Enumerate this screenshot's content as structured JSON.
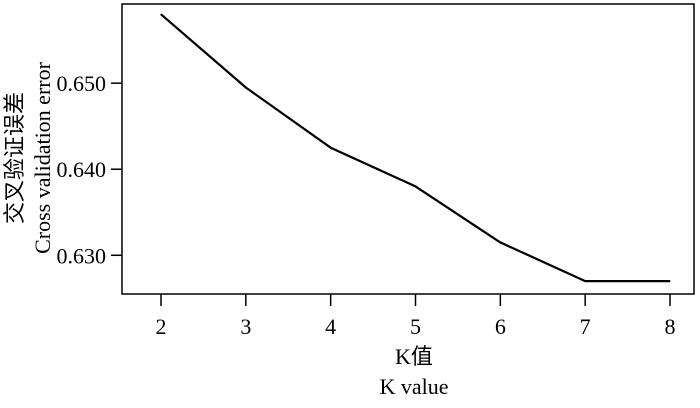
{
  "chart_data": {
    "type": "line",
    "xlabel_lines": [
      "K值",
      "K value"
    ],
    "ylabel_lines": [
      "交叉验证误差",
      "Cross validation error"
    ],
    "x_ticks": [
      "2",
      "3",
      "4",
      "5",
      "6",
      "7",
      "8"
    ],
    "y_ticks": [
      "0.630",
      "0.640",
      "0.650"
    ],
    "xlim": [
      2,
      8
    ],
    "ylim": [
      0.6255,
      0.6592
    ],
    "grid": false,
    "series": [
      {
        "color": "#000000",
        "x": [
          2,
          3,
          4,
          5,
          6,
          7,
          8
        ],
        "values": [
          0.658,
          0.6495,
          0.6425,
          0.638,
          0.6315,
          0.627,
          0.627
        ]
      }
    ]
  }
}
